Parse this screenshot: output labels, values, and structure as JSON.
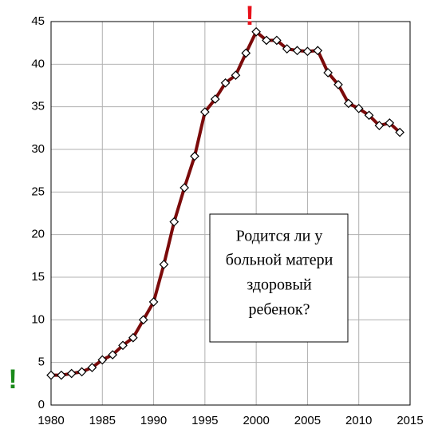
{
  "chart_data": {
    "type": "line",
    "x": [
      1980,
      1981,
      1982,
      1983,
      1984,
      1985,
      1986,
      1987,
      1988,
      1989,
      1990,
      1991,
      1992,
      1993,
      1994,
      1995,
      1996,
      1997,
      1998,
      1999,
      2000,
      2001,
      2002,
      2003,
      2004,
      2005,
      2006,
      2007,
      2008,
      2009,
      2010,
      2011,
      2012,
      2013,
      2014
    ],
    "series": [
      {
        "color": "#7b0a0a",
        "values": [
          3.5,
          3.5,
          3.7,
          3.9,
          4.4,
          5.3,
          5.9,
          7.0,
          7.9,
          10.0,
          12.1,
          16.5,
          21.5,
          25.5,
          29.2,
          34.4,
          35.9,
          37.8,
          38.7,
          41.3,
          43.8,
          42.8,
          42.8,
          41.8,
          41.6,
          41.5,
          41.6,
          39.0,
          37.6,
          35.4,
          34.8,
          34.0,
          32.8,
          33.1,
          32.0
        ]
      }
    ],
    "xlim": [
      1980,
      2015
    ],
    "xticks": [
      1980,
      1985,
      1990,
      1995,
      2000,
      2005,
      2010,
      2015
    ],
    "ylim": [
      0,
      45
    ],
    "yticks": [
      0,
      5,
      10,
      15,
      20,
      25,
      30,
      35,
      40,
      45
    ],
    "grid": true,
    "annotation_box": [
      "Родится ли у",
      "больной матери",
      "здоровый",
      "ребенок?"
    ],
    "marks": [
      {
        "text": "!",
        "color": "#1a8a1a"
      },
      {
        "text": "!",
        "color": "#e8101a"
      }
    ]
  }
}
